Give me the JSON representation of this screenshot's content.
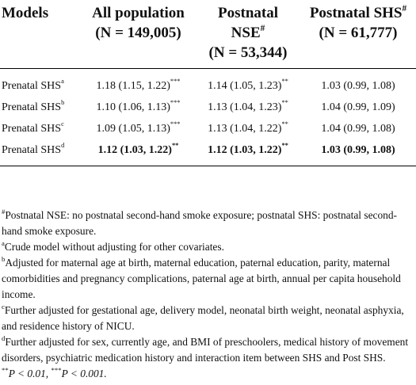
{
  "table": {
    "headers": {
      "models": "Models",
      "all": {
        "title": "All population",
        "n": "(N = 149,005)"
      },
      "nse": {
        "title": "Postnatal",
        "title2": "NSE",
        "sup": "#",
        "n": "(N = 53,344)"
      },
      "shs": {
        "title": "Postnatal SHS",
        "sup": "#",
        "n": "(N = 61,777)"
      }
    },
    "rows": [
      {
        "label": "Prenatal SHS",
        "sup": "a",
        "all": "1.18 (1.15, 1.22)",
        "all_sig": "***",
        "nse": "1.14 (1.05, 1.23)",
        "nse_sig": "**",
        "shs": "1.03 (0.99, 1.08)"
      },
      {
        "label": "Prenatal SHS",
        "sup": "b",
        "all": "1.10 (1.06, 1.13)",
        "all_sig": "***",
        "nse": "1.13 (1.04, 1.23)",
        "nse_sig": "**",
        "shs": "1.04 (0.99, 1.09)"
      },
      {
        "label": "Prenatal SHS",
        "sup": "c",
        "all": "1.09 (1.05, 1.13)",
        "all_sig": "***",
        "nse": "1.13 (1.04, 1.22)",
        "nse_sig": "**",
        "shs": "1.04 (0.99, 1.08)"
      },
      {
        "label": "Prenatal SHS",
        "sup": "d",
        "all": "1.12 (1.03, 1.22)",
        "all_sig": "**",
        "nse": "1.12 (1.03, 1.22)",
        "nse_sig": "**",
        "shs": "1.03 (0.99, 1.08)"
      }
    ]
  },
  "notes": [
    {
      "mark": "#",
      "text": "Postnatal NSE: no postnatal second-hand smoke exposure; postnatal SHS: postnatal second-hand smoke exposure."
    },
    {
      "mark": "a",
      "text": "Crude model without adjusting for other covariates."
    },
    {
      "mark": "b",
      "text": "Adjusted for maternal age at birth, maternal education, paternal education, parity, maternal comorbidities and pregnancy complications, paternal age at birth, annual per capita household income."
    },
    {
      "mark": "c",
      "text": "Further adjusted for gestational age, delivery model, neonatal birth weight, neonatal asphyxia, and residence history of NICU."
    },
    {
      "mark": "d",
      "text": "Further adjusted for sex, currently age, and BMI of preschoolers, medical history of movement disorders, psychiatric medication history and interaction item between SHS and Post SHS."
    }
  ],
  "pvalue": {
    "mark1": "**",
    "text1": "P < 0.01, ",
    "mark2": "***",
    "text2": "P < 0.001."
  }
}
